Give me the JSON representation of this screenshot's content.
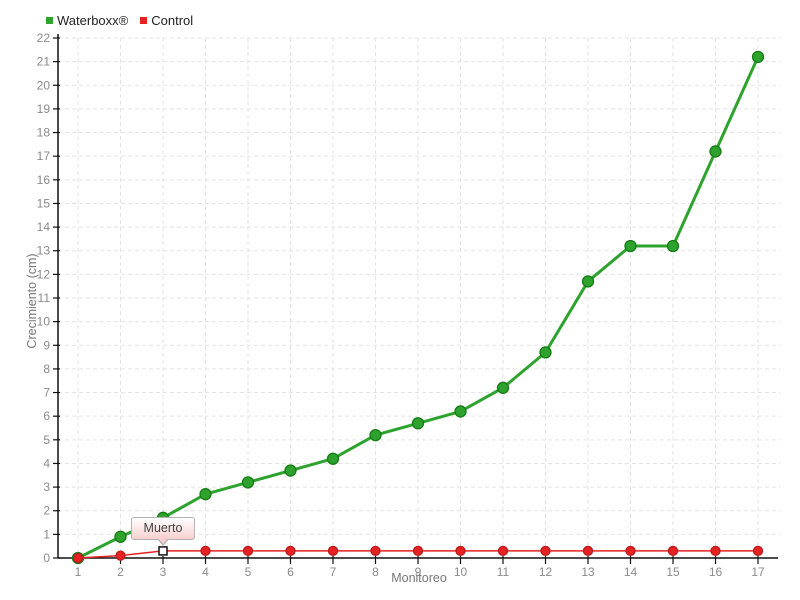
{
  "legend": {
    "items": [
      {
        "label": "Waterboxx®",
        "color": "#2da32d"
      },
      {
        "label": "Control",
        "color": "#e62222"
      }
    ]
  },
  "axes": {
    "x_title": "Monitoreo",
    "y_title": "Crecimiento (cm)"
  },
  "tooltip": {
    "text": "Muerto",
    "series": "Control",
    "x": 3
  },
  "chart_data": {
    "type": "line",
    "title": "",
    "xlabel": "Monitoreo",
    "ylabel": "Crecimiento (cm)",
    "x": [
      1,
      2,
      3,
      4,
      5,
      6,
      7,
      8,
      9,
      10,
      11,
      12,
      13,
      14,
      15,
      16,
      17
    ],
    "xlim": [
      1,
      17
    ],
    "ylim": [
      0,
      22
    ],
    "y_step": 1,
    "grid": "dashed",
    "legend_position": "top-left",
    "series": [
      {
        "name": "Waterboxx®",
        "color": "#2da32d",
        "marker_stroke": "#157c15",
        "line_width": 3,
        "marker_radius": 5.5,
        "values": [
          0,
          0.9,
          1.7,
          2.7,
          3.2,
          3.7,
          4.2,
          5.2,
          5.7,
          6.2,
          7.2,
          8.7,
          11.7,
          13.2,
          13.2,
          17.2,
          21.2
        ]
      },
      {
        "name": "Control",
        "color": "#e62222",
        "marker_stroke": "#b81b1b",
        "line_width": 1.5,
        "marker_radius": 4.5,
        "values": [
          0,
          0.1,
          0.3,
          0.3,
          0.3,
          0.3,
          0.3,
          0.3,
          0.3,
          0.3,
          0.3,
          0.3,
          0.3,
          0.3,
          0.3,
          0.3,
          0.3
        ],
        "highlight": {
          "index": 2,
          "marker": "open-square",
          "label": "Muerto"
        }
      }
    ]
  },
  "colors": {
    "grid": "#e3e3e3",
    "axis": "#111111",
    "tick_label": "#8a8a8a",
    "axis_title": "#777777",
    "legend_text": "#222222",
    "tooltip_border": "#b3b3b3",
    "tooltip_bg": "#f7cfcf",
    "tooltip_text": "#444444",
    "highlight_marker_fill": "#ffffff",
    "highlight_marker_stroke": "#111111"
  }
}
